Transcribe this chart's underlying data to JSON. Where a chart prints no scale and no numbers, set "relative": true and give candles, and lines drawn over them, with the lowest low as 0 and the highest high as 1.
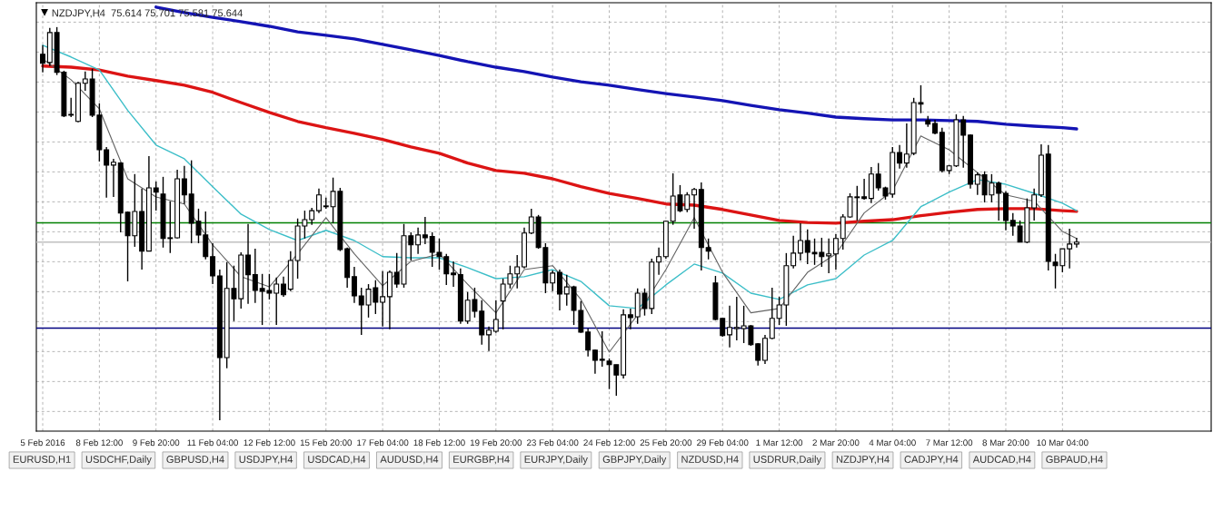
{
  "chart_data": {
    "type": "candlestick",
    "title": "NZDJPY,H4  75.614 75.701 75.581 75.644",
    "relative": true,
    "grid": true,
    "tick_labels": "x",
    "marker": "none",
    "line_style": "solid",
    "categories": [
      "5 Feb 2016",
      null,
      null,
      null,
      null,
      null,
      null,
      null,
      "8 Feb 12:00",
      null,
      null,
      null,
      null,
      null,
      null,
      null,
      "9 Feb 20:00",
      null,
      null,
      null,
      null,
      null,
      null,
      null,
      "11 Feb 04:00",
      null,
      null,
      null,
      null,
      null,
      null,
      null,
      "12 Feb 12:00",
      null,
      null,
      null,
      null,
      null,
      null,
      null,
      "15 Feb 20:00",
      null,
      null,
      null,
      null,
      null,
      null,
      null,
      "17 Feb 04:00",
      null,
      null,
      null,
      null,
      null,
      null,
      null,
      "18 Feb 12:00",
      null,
      null,
      null,
      null,
      null,
      null,
      null,
      "19 Feb 20:00",
      null,
      null,
      null,
      null,
      null,
      null,
      null,
      "23 Feb 04:00",
      null,
      null,
      null,
      null,
      null,
      null,
      null,
      "24 Feb 12:00",
      null,
      null,
      null,
      null,
      null,
      null,
      null,
      "25 Feb 20:00",
      null,
      null,
      null,
      null,
      null,
      null,
      null,
      "29 Feb 04:00",
      null,
      null,
      null,
      null,
      null,
      null,
      null,
      "1 Mar 12:00",
      null,
      null,
      null,
      null,
      null,
      null,
      null,
      "2 Mar 20:00",
      null,
      null,
      null,
      null,
      null,
      null,
      null,
      "4 Mar 04:00",
      null,
      null,
      null,
      null,
      null,
      null,
      null,
      "7 Mar 12:00",
      null,
      null,
      null,
      null,
      null,
      null,
      null,
      "8 Mar 20:00",
      null,
      null,
      null,
      null,
      null,
      null,
      null,
      "10 Mar 04:00",
      null,
      null
    ],
    "ohlc": [
      [
        0.931,
        0.954,
        0.885,
        0.908
      ],
      [
        0.91,
        0.998,
        0.901,
        0.986
      ],
      [
        0.986,
        1.0,
        0.878,
        0.885
      ],
      [
        0.885,
        0.889,
        0.771,
        0.774
      ],
      [
        0.776,
        0.82,
        0.771,
        0.778
      ],
      [
        0.76,
        0.861,
        0.758,
        0.857
      ],
      [
        0.857,
        0.887,
        0.838,
        0.868
      ],
      [
        0.868,
        0.894,
        0.771,
        0.776
      ],
      [
        0.776,
        0.806,
        0.658,
        0.688
      ],
      [
        0.688,
        0.695,
        0.566,
        0.649
      ],
      [
        0.649,
        0.665,
        0.568,
        0.656
      ],
      [
        0.654,
        0.656,
        0.478,
        0.527
      ],
      [
        0.529,
        0.531,
        0.353,
        0.469
      ],
      [
        0.469,
        0.626,
        0.441,
        0.531
      ],
      [
        0.531,
        0.589,
        0.383,
        0.43
      ],
      [
        0.43,
        0.672,
        0.43,
        0.591
      ],
      [
        0.591,
        0.607,
        0.533,
        0.58
      ],
      [
        0.575,
        0.619,
        0.439,
        0.462
      ],
      [
        0.462,
        0.557,
        0.425,
        0.464
      ],
      [
        0.464,
        0.637,
        0.462,
        0.614
      ],
      [
        0.614,
        0.647,
        0.55,
        0.573
      ],
      [
        0.575,
        0.661,
        0.45,
        0.501
      ],
      [
        0.506,
        0.538,
        0.45,
        0.471
      ],
      [
        0.471,
        0.531,
        0.409,
        0.416
      ],
      [
        0.416,
        0.45,
        0.346,
        0.367
      ],
      [
        0.367,
        0.383,
        0.0,
        0.159
      ],
      [
        0.159,
        0.402,
        0.132,
        0.335
      ],
      [
        0.335,
        0.393,
        0.252,
        0.309
      ],
      [
        0.309,
        0.427,
        0.284,
        0.42
      ],
      [
        0.42,
        0.499,
        0.296,
        0.37
      ],
      [
        0.37,
        0.436,
        0.298,
        0.33
      ],
      [
        0.335,
        0.372,
        0.242,
        0.328
      ],
      [
        0.33,
        0.372,
        0.307,
        0.323
      ],
      [
        0.323,
        0.363,
        0.242,
        0.346
      ],
      [
        0.346,
        0.365,
        0.314,
        0.319
      ],
      [
        0.333,
        0.43,
        0.328,
        0.406
      ],
      [
        0.406,
        0.513,
        0.36,
        0.494
      ],
      [
        0.494,
        0.533,
        0.462,
        0.51
      ],
      [
        0.51,
        0.54,
        0.497,
        0.533
      ],
      [
        0.533,
        0.589,
        0.527,
        0.573
      ],
      [
        0.543,
        0.566,
        0.538,
        0.545
      ],
      [
        0.543,
        0.617,
        0.501,
        0.582
      ],
      [
        0.582,
        0.591,
        0.43,
        0.434
      ],
      [
        0.436,
        0.439,
        0.337,
        0.363
      ],
      [
        0.365,
        0.39,
        0.298,
        0.316
      ],
      [
        0.316,
        0.337,
        0.217,
        0.293
      ],
      [
        0.293,
        0.346,
        0.261,
        0.333
      ],
      [
        0.337,
        0.356,
        0.27,
        0.3
      ],
      [
        0.3,
        0.379,
        0.238,
        0.314
      ],
      [
        0.314,
        0.381,
        0.231,
        0.376
      ],
      [
        0.376,
        0.425,
        0.337,
        0.346
      ],
      [
        0.346,
        0.499,
        0.337,
        0.469
      ],
      [
        0.469,
        0.478,
        0.406,
        0.446
      ],
      [
        0.446,
        0.49,
        0.423,
        0.471
      ],
      [
        0.471,
        0.517,
        0.448,
        0.464
      ],
      [
        0.467,
        0.478,
        0.39,
        0.427
      ],
      [
        0.427,
        0.462,
        0.383,
        0.416
      ],
      [
        0.416,
        0.423,
        0.344,
        0.372
      ],
      [
        0.374,
        0.404,
        0.339,
        0.37
      ],
      [
        0.37,
        0.386,
        0.245,
        0.252
      ],
      [
        0.252,
        0.326,
        0.245,
        0.305
      ],
      [
        0.307,
        0.337,
        0.261,
        0.277
      ],
      [
        0.277,
        0.305,
        0.192,
        0.217
      ],
      [
        0.217,
        0.238,
        0.176,
        0.229
      ],
      [
        0.226,
        0.305,
        0.222,
        0.256
      ],
      [
        0.303,
        0.36,
        0.231,
        0.346
      ],
      [
        0.346,
        0.393,
        0.335,
        0.372
      ],
      [
        0.372,
        0.42,
        0.335,
        0.39
      ],
      [
        0.39,
        0.49,
        0.386,
        0.476
      ],
      [
        0.476,
        0.538,
        0.473,
        0.517
      ],
      [
        0.517,
        0.522,
        0.436,
        0.439
      ],
      [
        0.439,
        0.45,
        0.323,
        0.349
      ],
      [
        0.349,
        0.381,
        0.328,
        0.374
      ],
      [
        0.376,
        0.383,
        0.279,
        0.321
      ],
      [
        0.321,
        0.37,
        0.291,
        0.339
      ],
      [
        0.339,
        0.342,
        0.242,
        0.279
      ],
      [
        0.279,
        0.303,
        0.222,
        0.224
      ],
      [
        0.224,
        0.233,
        0.162,
        0.178
      ],
      [
        0.178,
        0.18,
        0.118,
        0.152
      ],
      [
        0.155,
        0.226,
        0.136,
        0.152
      ],
      [
        0.15,
        0.157,
        0.079,
        0.141
      ],
      [
        0.141,
        0.141,
        0.062,
        0.115
      ],
      [
        0.115,
        0.282,
        0.106,
        0.268
      ],
      [
        0.268,
        0.284,
        0.231,
        0.261
      ],
      [
        0.263,
        0.335,
        0.245,
        0.323
      ],
      [
        0.323,
        0.335,
        0.266,
        0.284
      ],
      [
        0.284,
        0.411,
        0.27,
        0.402
      ],
      [
        0.402,
        0.439,
        0.37,
        0.416
      ],
      [
        0.416,
        0.508,
        0.411,
        0.506
      ],
      [
        0.506,
        0.628,
        0.497,
        0.57
      ],
      [
        0.573,
        0.598,
        0.529,
        0.533
      ],
      [
        0.536,
        0.58,
        0.529,
        0.573
      ],
      [
        0.573,
        0.591,
        0.487,
        0.587
      ],
      [
        0.587,
        0.605,
        0.381,
        0.439
      ],
      [
        0.439,
        0.462,
        0.409,
        0.43
      ],
      [
        0.349,
        0.367,
        0.254,
        0.256
      ],
      [
        0.259,
        0.259,
        0.212,
        0.215
      ],
      [
        0.217,
        0.291,
        0.185,
        0.236
      ],
      [
        0.233,
        0.314,
        0.203,
        0.236
      ],
      [
        0.233,
        0.291,
        0.196,
        0.24
      ],
      [
        0.24,
        0.242,
        0.189,
        0.192
      ],
      [
        0.194,
        0.196,
        0.139,
        0.152
      ],
      [
        0.152,
        0.217,
        0.143,
        0.208
      ],
      [
        0.208,
        0.337,
        0.206,
        0.259
      ],
      [
        0.259,
        0.314,
        0.242,
        0.293
      ],
      [
        0.293,
        0.425,
        0.24,
        0.393
      ],
      [
        0.393,
        0.469,
        0.386,
        0.425
      ],
      [
        0.425,
        0.501,
        0.406,
        0.457
      ],
      [
        0.457,
        0.485,
        0.397,
        0.427
      ],
      [
        0.427,
        0.462,
        0.395,
        0.423
      ],
      [
        0.427,
        0.464,
        0.39,
        0.416
      ],
      [
        0.418,
        0.462,
        0.374,
        0.423
      ],
      [
        0.423,
        0.473,
        0.383,
        0.462
      ],
      [
        0.462,
        0.524,
        0.434,
        0.517
      ],
      [
        0.517,
        0.577,
        0.515,
        0.568
      ],
      [
        0.568,
        0.596,
        0.508,
        0.566
      ],
      [
        0.568,
        0.614,
        0.561,
        0.564
      ],
      [
        0.564,
        0.644,
        0.552,
        0.626
      ],
      [
        0.626,
        0.654,
        0.584,
        0.591
      ],
      [
        0.591,
        0.594,
        0.561,
        0.57
      ],
      [
        0.575,
        0.695,
        0.566,
        0.681
      ],
      [
        0.681,
        0.7,
        0.64,
        0.654
      ],
      [
        0.654,
        0.755,
        0.642,
        0.677
      ],
      [
        0.679,
        0.82,
        0.674,
        0.808
      ],
      [
        0.808,
        0.852,
        0.781,
        0.804
      ],
      [
        0.762,
        0.774,
        0.746,
        0.753
      ],
      [
        0.755,
        0.764,
        0.727,
        0.73
      ],
      [
        0.732,
        0.744,
        0.63,
        0.635
      ],
      [
        0.635,
        0.649,
        0.626,
        0.647
      ],
      [
        0.647,
        0.778,
        0.644,
        0.764
      ],
      [
        0.764,
        0.774,
        0.642,
        0.725
      ],
      [
        0.725,
        0.727,
        0.589,
        0.6
      ],
      [
        0.6,
        0.63,
        0.573,
        0.624
      ],
      [
        0.624,
        0.633,
        0.554,
        0.573
      ],
      [
        0.573,
        0.626,
        0.554,
        0.603
      ],
      [
        0.603,
        0.607,
        0.508,
        0.577
      ],
      [
        0.577,
        0.582,
        0.483,
        0.508
      ],
      [
        0.508,
        0.527,
        0.469,
        0.494
      ],
      [
        0.494,
        0.508,
        0.453,
        0.453
      ],
      [
        0.453,
        0.564,
        0.45,
        0.54
      ],
      [
        0.54,
        0.589,
        0.508,
        0.573
      ],
      [
        0.573,
        0.702,
        0.568,
        0.674
      ],
      [
        0.677,
        0.7,
        0.381,
        0.404
      ],
      [
        0.402,
        0.423,
        0.335,
        0.393
      ],
      [
        0.393,
        0.436,
        0.376,
        0.436
      ],
      [
        0.436,
        0.487,
        0.386,
        0.448
      ],
      [
        0.448,
        0.464,
        0.439,
        0.453
      ]
    ],
    "series": [
      {
        "type": "line",
        "color": "#1414b4",
        "values": [
          null,
          null,
          null,
          null,
          null,
          null,
          null,
          null,
          null,
          null,
          null,
          null,
          null,
          null,
          null,
          null,
          1.051,
          null,
          null,
          null,
          1.037,
          null,
          null,
          null,
          1.025,
          null,
          null,
          null,
          1.014,
          null,
          null,
          null,
          1.002,
          null,
          null,
          null,
          0.988,
          null,
          null,
          null,
          0.979,
          null,
          null,
          null,
          0.97,
          null,
          null,
          null,
          0.956,
          null,
          null,
          null,
          0.942,
          null,
          null,
          null,
          0.928,
          null,
          null,
          null,
          0.912,
          null,
          null,
          null,
          0.898,
          null,
          null,
          null,
          0.887,
          null,
          null,
          null,
          0.873,
          null,
          null,
          null,
          0.861,
          null,
          null,
          null,
          0.852,
          null,
          null,
          null,
          0.841,
          null,
          null,
          null,
          0.831,
          null,
          null,
          null,
          0.822,
          null,
          null,
          null,
          0.813,
          null,
          null,
          null,
          0.801,
          null,
          null,
          null,
          0.79,
          null,
          null,
          null,
          0.781,
          null,
          null,
          null,
          0.771,
          null,
          null,
          null,
          0.767,
          null,
          null,
          null,
          0.764,
          null,
          null,
          null,
          0.764,
          null,
          null,
          null,
          0.762,
          null,
          null,
          null,
          0.76,
          null,
          null,
          null,
          0.753,
          null,
          null,
          null,
          0.748,
          null,
          null,
          null,
          0.744,
          null,
          0.741
        ]
      },
      {
        "type": "line",
        "color": "#dc1414",
        "values": [
          0.901,
          null,
          null,
          null,
          0.898,
          null,
          null,
          null,
          0.891,
          null,
          null,
          null,
          0.875,
          null,
          null,
          null,
          0.864,
          null,
          null,
          null,
          0.852,
          null,
          null,
          null,
          0.834,
          null,
          null,
          null,
          0.808,
          null,
          null,
          null,
          0.783,
          null,
          null,
          null,
          0.76,
          null,
          null,
          null,
          0.744,
          null,
          null,
          null,
          0.73,
          null,
          null,
          null,
          0.714,
          null,
          null,
          null,
          0.695,
          null,
          null,
          null,
          0.679,
          null,
          null,
          null,
          0.654,
          null,
          null,
          null,
          0.635,
          null,
          null,
          null,
          0.628,
          null,
          null,
          null,
          0.614,
          null,
          null,
          null,
          0.594,
          null,
          null,
          null,
          0.577,
          null,
          null,
          null,
          0.564,
          null,
          null,
          null,
          0.55,
          null,
          null,
          null,
          0.547,
          null,
          null,
          null,
          0.536,
          null,
          null,
          null,
          0.522,
          null,
          null,
          null,
          0.508,
          null,
          null,
          null,
          0.503,
          null,
          null,
          null,
          0.501,
          null,
          null,
          null,
          0.506,
          null,
          null,
          null,
          0.51,
          null,
          null,
          null,
          0.52,
          null,
          null,
          null,
          0.529,
          null,
          null,
          null,
          0.536,
          null,
          null,
          null,
          0.538,
          null,
          null,
          null,
          0.538,
          null,
          null,
          null,
          0.533,
          null,
          0.531
        ]
      },
      {
        "type": "line",
        "color": "#3cbec8",
        "values": [
          0.954,
          null,
          null,
          null,
          0.924,
          null,
          null,
          null,
          0.891,
          null,
          null,
          null,
          0.788,
          null,
          null,
          null,
          0.7,
          null,
          null,
          null,
          0.665,
          null,
          null,
          null,
          0.594,
          null,
          null,
          null,
          0.524,
          null,
          null,
          null,
          0.485,
          null,
          null,
          null,
          0.457,
          null,
          null,
          null,
          0.483,
          null,
          null,
          null,
          0.457,
          null,
          null,
          null,
          0.416,
          null,
          null,
          null,
          0.413,
          null,
          null,
          null,
          0.413,
          null,
          null,
          null,
          0.388,
          null,
          null,
          null,
          0.36,
          null,
          null,
          null,
          0.365,
          null,
          null,
          null,
          0.383,
          null,
          null,
          null,
          0.353,
          null,
          null,
          null,
          0.291,
          null,
          null,
          null,
          0.284,
          null,
          null,
          null,
          0.344,
          null,
          null,
          null,
          0.397,
          null,
          null,
          null,
          0.374,
          null,
          null,
          null,
          0.323,
          null,
          null,
          null,
          0.307,
          null,
          null,
          null,
          0.344,
          null,
          null,
          null,
          0.36,
          null,
          null,
          null,
          0.42,
          null,
          null,
          null,
          0.457,
          null,
          null,
          null,
          0.543,
          null,
          null,
          null,
          0.58,
          null,
          null,
          null,
          0.612,
          null,
          null,
          null,
          0.6,
          null,
          null,
          null,
          0.577,
          null,
          null,
          null,
          0.552,
          null,
          0.533
        ]
      },
      {
        "type": "line",
        "color": "#646464",
        "values": [
          0.919,
          null,
          null,
          null,
          0.866,
          null,
          null,
          null,
          0.792,
          null,
          null,
          null,
          0.614,
          null,
          null,
          null,
          0.568,
          null,
          null,
          null,
          0.55,
          null,
          null,
          null,
          0.446,
          null,
          null,
          null,
          0.365,
          null,
          null,
          null,
          0.339,
          null,
          null,
          null,
          0.423,
          null,
          null,
          null,
          0.515,
          null,
          null,
          null,
          0.423,
          null,
          null,
          null,
          0.342,
          null,
          null,
          null,
          0.404,
          null,
          null,
          null,
          0.423,
          null,
          null,
          null,
          0.346,
          null,
          null,
          null,
          0.273,
          null,
          null,
          null,
          0.383,
          null,
          null,
          null,
          0.393,
          null,
          null,
          null,
          0.307,
          null,
          null,
          null,
          0.173,
          null,
          null,
          null,
          0.268,
          null,
          null,
          null,
          0.383,
          null,
          null,
          null,
          0.515,
          null,
          null,
          null,
          0.376,
          null,
          null,
          null,
          0.273,
          null,
          null,
          null,
          0.284,
          null,
          null,
          null,
          0.376,
          null,
          null,
          null,
          0.423,
          null,
          null,
          null,
          0.527,
          null,
          null,
          null,
          0.584,
          null,
          null,
          null,
          0.723,
          null,
          null,
          null,
          0.688,
          null,
          null,
          null,
          0.63,
          null,
          null,
          null,
          0.573,
          null,
          null,
          null,
          0.557,
          null,
          null,
          null,
          0.48,
          null,
          0.462
        ]
      }
    ],
    "ref_lines": [
      {
        "axis": "y",
        "value": 0.502,
        "color": "#008000"
      },
      {
        "axis": "y",
        "value": 0.234,
        "color": "#000080"
      },
      {
        "axis": "y",
        "value": 0.453,
        "color": "#c0c0c0"
      }
    ],
    "annotations": [
      "EURUSD,H1",
      "USDCHF,Daily",
      "GBPUSD,H4",
      "USDJPY,H4",
      "USDCAD,H4",
      "AUDUSD,H4",
      "EURGBP,H4",
      "EURJPY,Daily",
      "GBPJPY,Daily",
      "NZDUSD,H4",
      "USDRUR,Daily",
      "NZDJPY,H4",
      "CADJPY,H4",
      "AUDCAD,H4",
      "GBPAUD,H4"
    ]
  }
}
